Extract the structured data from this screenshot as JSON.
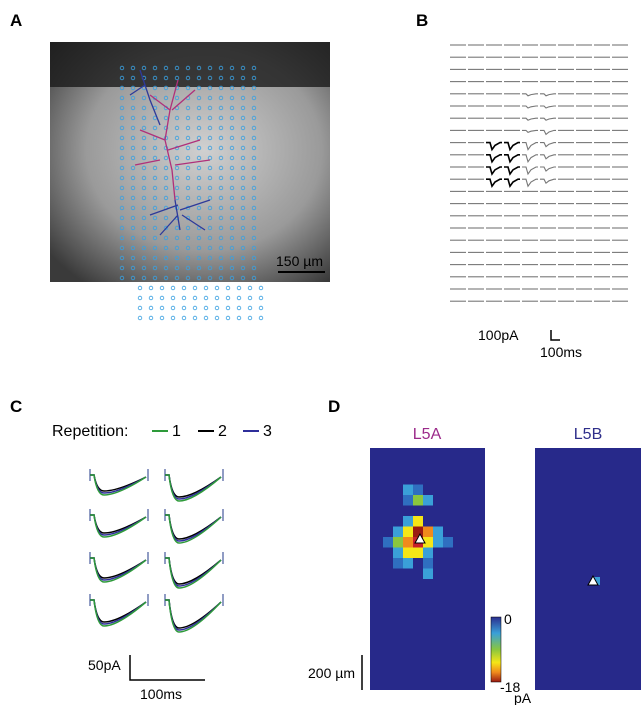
{
  "panels": {
    "a": {
      "label": "A",
      "scale_bar": "150 µm"
    },
    "b": {
      "label": "B",
      "scale_y": "100pA",
      "scale_x": "100ms"
    },
    "c": {
      "label": "C",
      "legend_title": "Repetition:",
      "legend": [
        "1",
        "2",
        "3"
      ],
      "scale_y": "50pA",
      "scale_x": "100ms"
    },
    "d": {
      "label": "D",
      "maps": [
        "L5A",
        "L5B"
      ],
      "scale_bar": "200 µm",
      "colorbar_top": "0",
      "colorbar_bottom": "-18",
      "colorbar_unit": "pA"
    }
  }
}
